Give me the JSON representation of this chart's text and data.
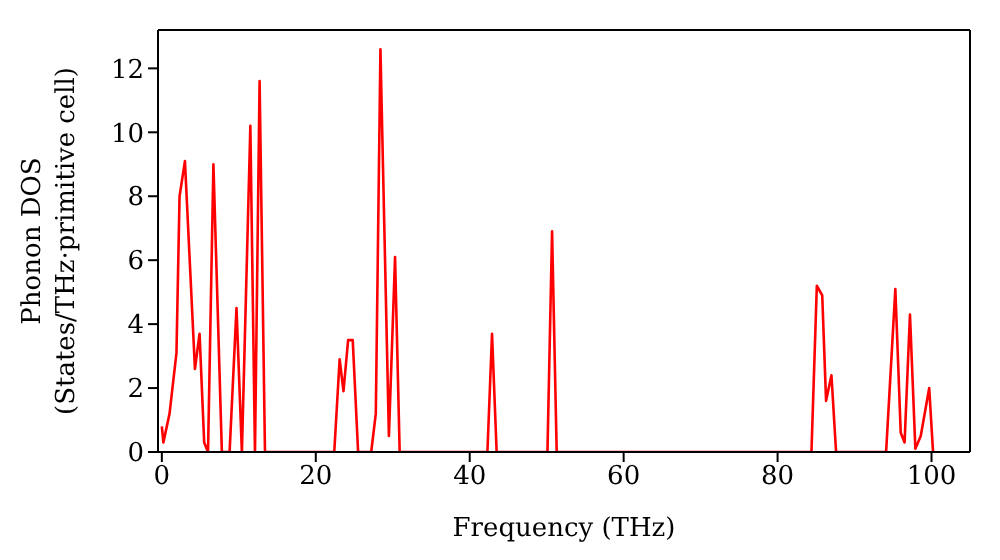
{
  "chart_data": {
    "type": "line",
    "xlabel": "Frequency (THz)",
    "ylabel": "Phonon DOS\n(States/THz·primitive cell)",
    "x": [
      0,
      0.2,
      1.0,
      1.9,
      2.3,
      3.0,
      4.3,
      4.9,
      5.5,
      6.0,
      6.7,
      7.8,
      8.8,
      9.7,
      10.4,
      11.5,
      12.1,
      12.7,
      13.4,
      22.4,
      23.1,
      23.6,
      24.2,
      24.8,
      25.5,
      27.2,
      27.8,
      28.4,
      29.5,
      30.3,
      30.9,
      42.3,
      42.9,
      43.5,
      50.1,
      50.7,
      51.3,
      84.4,
      85.1,
      85.8,
      86.3,
      87.0,
      87.6,
      94.1,
      95.3,
      96.0,
      96.5,
      97.2,
      97.9,
      98.6,
      99.7,
      100.2
    ],
    "series": [
      {
        "color": "#ff0000",
        "values": [
          0.8,
          0.3,
          1.2,
          3.1,
          8.0,
          9.1,
          2.6,
          3.7,
          0.3,
          0,
          9.0,
          0,
          0,
          4.5,
          0,
          10.2,
          0,
          11.6,
          0,
          0,
          2.9,
          1.9,
          3.5,
          3.5,
          0,
          0,
          1.2,
          12.6,
          0.5,
          6.1,
          0,
          0,
          3.7,
          0,
          0,
          6.9,
          0,
          0,
          5.2,
          4.9,
          1.6,
          2.4,
          0,
          0,
          5.1,
          0.6,
          0.3,
          4.3,
          0.1,
          0.5,
          2.0,
          0
        ]
      }
    ],
    "xlim": [
      -0.5,
      105
    ],
    "xticks": [
      0,
      20,
      40,
      60,
      80,
      100
    ],
    "ylim": [
      0,
      13.2
    ],
    "yticks": [
      0,
      2,
      4,
      6,
      8,
      10,
      12
    ],
    "marker": "none",
    "line_style": "solid"
  }
}
